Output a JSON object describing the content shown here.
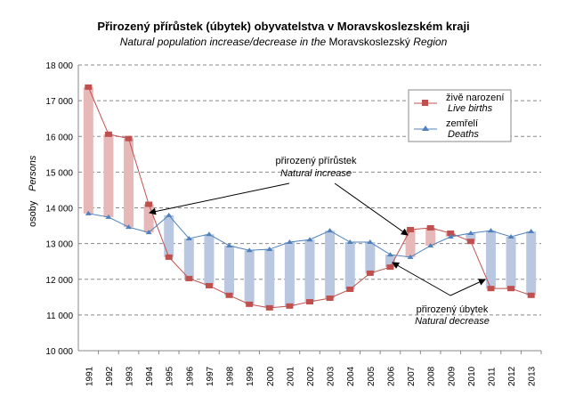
{
  "chart_data": {
    "type": "line",
    "title": "Přirozený přírůstek (úbytek) obyvatelstva v Moravskoslezském kraji",
    "subtitle_italic": "Natural population increase/decrease in the",
    "subtitle_plain": "Moravskoslezský",
    "subtitle_italic_end": "Region",
    "ylabel": "osoby",
    "ylabel_en": "Persons",
    "ylim": [
      10000,
      18000
    ],
    "yticks": [
      10000,
      11000,
      12000,
      13000,
      14000,
      15000,
      16000,
      17000,
      18000
    ],
    "ytick_labels": [
      "10 000",
      "11 000",
      "12 000",
      "13 000",
      "14 000",
      "15 000",
      "16 000",
      "17 000",
      "18 000"
    ],
    "grid": true,
    "legend_position": "top-right",
    "categories": [
      "1991",
      "1992",
      "1993",
      "1994",
      "1995",
      "1996",
      "1997",
      "1998",
      "1999",
      "2000",
      "2001",
      "2002",
      "2003",
      "2004",
      "2005",
      "2006",
      "2007",
      "2008",
      "2009",
      "2010",
      "2011",
      "2012",
      "2013"
    ],
    "series": [
      {
        "name": "živě narození",
        "name_en": "Live births",
        "color": "#c0504d",
        "marker": "square",
        "values": [
          17380,
          16060,
          15940,
          14100,
          12620,
          12020,
          11820,
          11550,
          11300,
          11200,
          11250,
          11370,
          11470,
          11720,
          12170,
          12340,
          13390,
          13440,
          13290,
          13060,
          11740,
          11740,
          11550
        ]
      },
      {
        "name": "zemřelí",
        "name_en": "Deaths",
        "color": "#4f81bd",
        "marker": "triangle",
        "values": [
          13840,
          13740,
          13460,
          13310,
          13790,
          13140,
          13260,
          12940,
          12810,
          12840,
          13040,
          13110,
          13360,
          13040,
          13040,
          12690,
          12620,
          12940,
          13190,
          13290,
          13360,
          13190,
          13340
        ]
      }
    ],
    "bar_colors": {
      "increase": "#e6b9b8",
      "decrease": "#b9c7e0"
    },
    "annotations": [
      {
        "label": "přirozený přírůstek",
        "label_en": "Natural increase"
      },
      {
        "label": "přirozený úbytek",
        "label_en": "Natural decrease"
      }
    ]
  }
}
